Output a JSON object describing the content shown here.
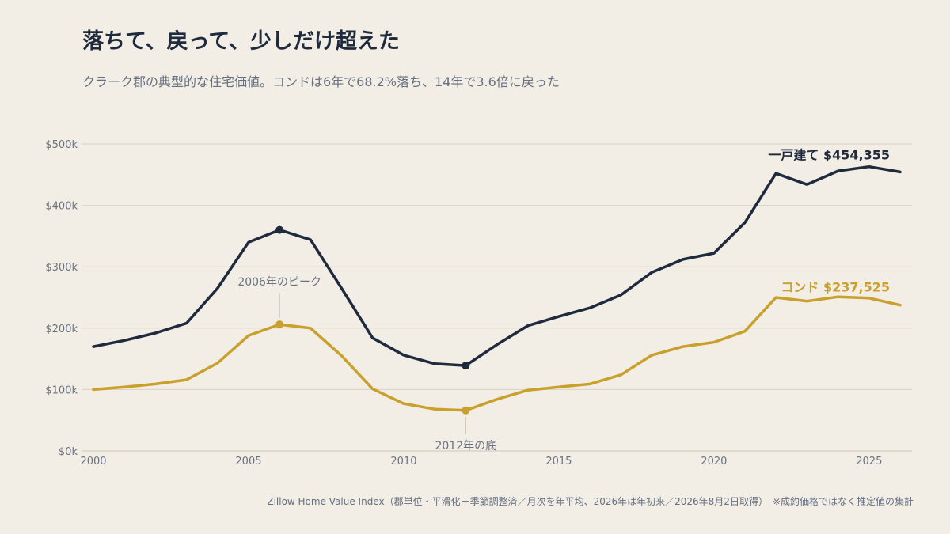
{
  "header": {
    "title": "落ちて、戻って、少しだけ超えた",
    "subtitle": "クラーク郡の典型的な住宅価値。コンドは6年で68.2%落ち、14年で3.6倍に戻った"
  },
  "footer": {
    "source": "Zillow Home Value Index（郡単位・平滑化＋季節調整済／月次を年平均、2026年は年初来／2026年8月2日取得）　※成約価格ではなく推定値の集計"
  },
  "colors": {
    "single_family": "#1f2b3d",
    "condo": "#c9a02c",
    "grid": "#d9d2c3",
    "axis": "#6b7382"
  },
  "chart_data": {
    "type": "line",
    "x": [
      2000,
      2001,
      2002,
      2003,
      2004,
      2005,
      2006,
      2007,
      2008,
      2009,
      2010,
      2011,
      2012,
      2013,
      2014,
      2015,
      2016,
      2017,
      2018,
      2019,
      2020,
      2021,
      2022,
      2023,
      2024,
      2025,
      2026
    ],
    "series": [
      {
        "name": "一戸建て",
        "color": "#1f2b3d",
        "end_label": "一戸建て $454,355",
        "values": [
          170000,
          180000,
          192000,
          208000,
          265000,
          340000,
          360000,
          344000,
          265000,
          184000,
          156000,
          142000,
          139000,
          173000,
          204000,
          219000,
          233000,
          254000,
          291000,
          312000,
          322000,
          372000,
          452000,
          434000,
          456000,
          463000,
          454355
        ]
      },
      {
        "name": "コンド",
        "color": "#c9a02c",
        "end_label": "コンド $237,525",
        "values": [
          100000,
          104000,
          109000,
          116000,
          143000,
          188000,
          206000,
          200000,
          155000,
          101000,
          77000,
          68000,
          66000,
          84000,
          99000,
          104000,
          109000,
          124000,
          156000,
          170000,
          177000,
          195000,
          250000,
          244000,
          251000,
          249000,
          237525
        ]
      }
    ],
    "xticks": [
      2000,
      2005,
      2010,
      2015,
      2020,
      2025
    ],
    "xtick_labels": [
      "2000",
      "2005",
      "2010",
      "2015",
      "2020",
      "2025"
    ],
    "yticks": [
      0,
      100000,
      200000,
      300000,
      400000,
      500000
    ],
    "ytick_labels": [
      "$0k",
      "$100k",
      "$200k",
      "$300k",
      "$400k",
      "$500k"
    ],
    "xlim": [
      2000,
      2026
    ],
    "ylim": [
      0,
      500000
    ],
    "grid": true,
    "annotations": [
      {
        "text": "2006年のピーク",
        "x": 2006,
        "series": 1,
        "position": "above"
      },
      {
        "text": "2012年の底",
        "x": 2012,
        "series": 1,
        "position": "below"
      }
    ],
    "markers": [
      {
        "x": 2006,
        "series": 0
      },
      {
        "x": 2012,
        "series": 0
      },
      {
        "x": 2006,
        "series": 1
      },
      {
        "x": 2012,
        "series": 1
      }
    ]
  }
}
